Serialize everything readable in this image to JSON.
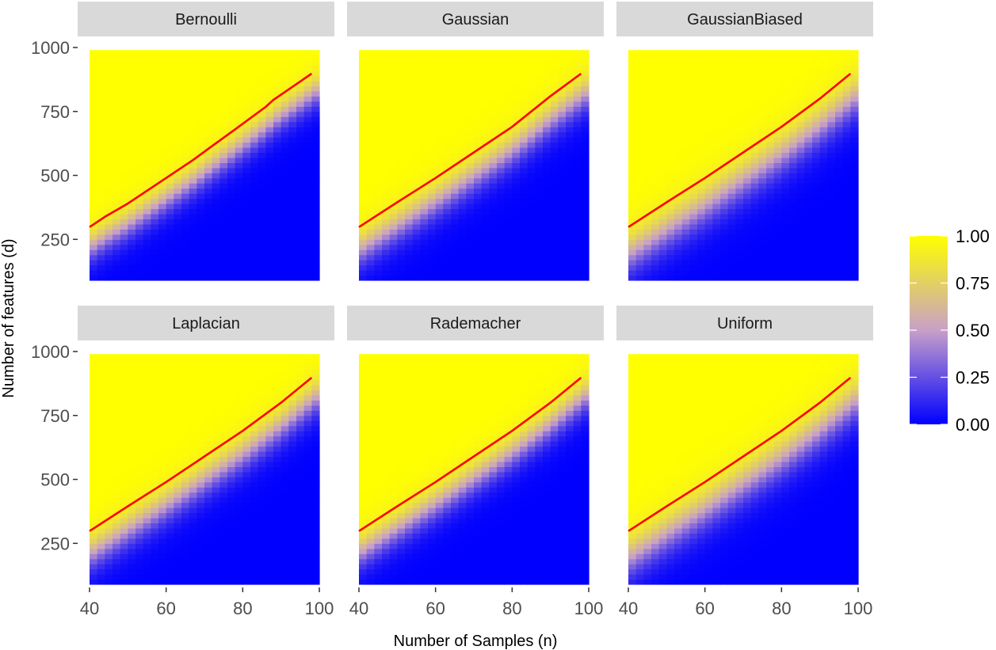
{
  "chart_data": {
    "type": "heatmap",
    "layout": "facet-grid 2x3",
    "xlabel": "Number of Samples (n)",
    "ylabel": "Number of features (d)",
    "xlim": [
      40,
      100
    ],
    "ylim": [
      90,
      1000
    ],
    "x_ticks": [
      40,
      60,
      80,
      100
    ],
    "y_ticks": [
      250,
      500,
      750,
      1000
    ],
    "x_data_range": [
      40,
      100
    ],
    "y_data_range": [
      90,
      990
    ],
    "fill_scale": {
      "low_color": "#0000ff",
      "mid_color": "#c8a0c8",
      "high_color": "#ffff00",
      "limits": [
        0,
        1
      ],
      "breaks": [
        "0.00",
        "0.25",
        "0.50",
        "0.75",
        "1.00"
      ]
    },
    "line_color": "#ff0000",
    "panels": [
      {
        "name": "Bernoulli",
        "line": {
          "x": [
            40,
            44,
            50,
            55,
            60,
            67,
            72,
            78,
            86,
            88,
            98
          ],
          "y": [
            298,
            338,
            390,
            440,
            490,
            560,
            615,
            680,
            768,
            795,
            898
          ]
        },
        "transition_width": 150
      },
      {
        "name": "Gaussian",
        "line": {
          "x": [
            40,
            50,
            60,
            70,
            80,
            90,
            98
          ],
          "y": [
            298,
            395,
            490,
            590,
            690,
            810,
            898
          ]
        },
        "transition_width": 170
      },
      {
        "name": "GaussianBiased",
        "line": {
          "x": [
            40,
            50,
            60,
            70,
            80,
            90,
            98
          ],
          "y": [
            298,
            395,
            490,
            590,
            690,
            800,
            898
          ]
        },
        "transition_width": 200
      },
      {
        "name": "Laplacian",
        "line": {
          "x": [
            40,
            50,
            60,
            70,
            80,
            90,
            98
          ],
          "y": [
            298,
            395,
            490,
            590,
            690,
            800,
            898
          ]
        },
        "transition_width": 170
      },
      {
        "name": "Rademacher",
        "line": {
          "x": [
            40,
            50,
            60,
            70,
            80,
            90,
            98
          ],
          "y": [
            298,
            395,
            490,
            590,
            690,
            800,
            898
          ]
        },
        "transition_width": 160
      },
      {
        "name": "Uniform",
        "line": {
          "x": [
            40,
            50,
            60,
            70,
            80,
            90,
            98
          ],
          "y": [
            298,
            395,
            490,
            590,
            690,
            800,
            898
          ]
        },
        "transition_width": 200
      }
    ]
  }
}
